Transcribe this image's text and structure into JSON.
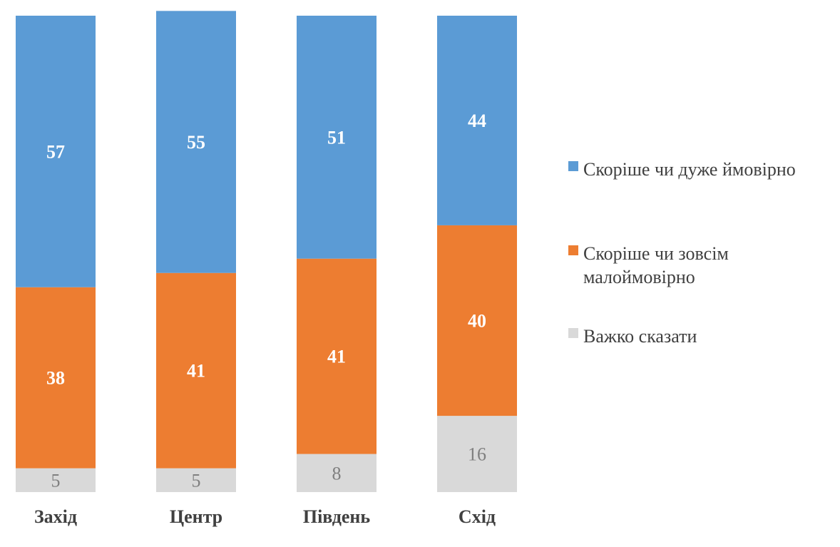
{
  "chart_data": {
    "type": "bar",
    "stacked": true,
    "categories": [
      "Захід",
      "Центр",
      "Південь",
      "Схід"
    ],
    "series": [
      {
        "name": "Важко сказати",
        "values": [
          5,
          5,
          8,
          16
        ],
        "color": "#d9d9d9"
      },
      {
        "name": "Скоріше чи зовсім малоймовірно",
        "values": [
          38,
          41,
          41,
          40
        ],
        "color": "#ed7d31"
      },
      {
        "name": "Скоріше чи дуже ймовірно",
        "values": [
          57,
          55,
          51,
          44
        ],
        "color": "#5b9bd5"
      }
    ],
    "legend_order": [
      {
        "lines": [
          "Скоріше чи дуже ймовірно"
        ],
        "color": "#5b9bd5"
      },
      {
        "lines": [
          "Скоріше чи зовсім",
          "малоймовірно"
        ],
        "color": "#ed7d31"
      },
      {
        "lines": [
          "Важко сказати"
        ],
        "color": "#d9d9d9"
      }
    ],
    "legend_position": "right",
    "grid": false,
    "ylim": [
      0,
      100
    ]
  }
}
